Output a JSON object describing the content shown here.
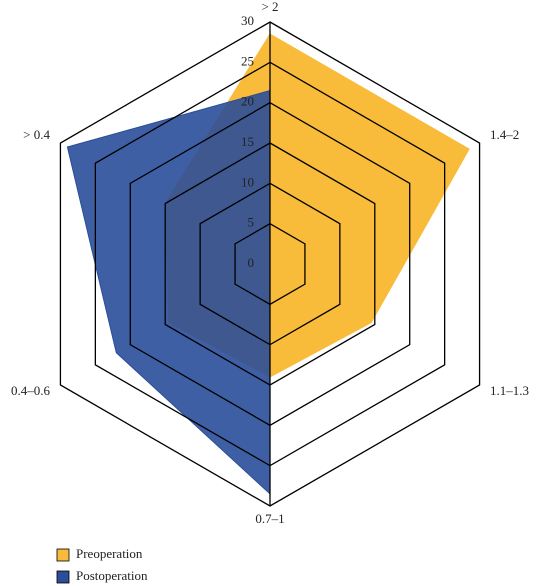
{
  "chart_data": {
    "type": "radar",
    "categories": [
      "> 2",
      "1.4–2",
      "1.1–1.3",
      "0.7–1",
      "0.4–0.6",
      "> 0.4"
    ],
    "series": [
      {
        "name": "Preoperation",
        "color": "#f9bb3a",
        "values": [
          28.5,
          28.5,
          14.5,
          14,
          14.5,
          15
        ]
      },
      {
        "name": "Postoperation",
        "color": "#2a4e9a",
        "values": [
          21.5,
          0,
          0,
          28.5,
          22,
          29
        ]
      }
    ],
    "rlim": [
      0,
      30
    ],
    "rticks": [
      0,
      5,
      10,
      15,
      20,
      25,
      30
    ],
    "grid": true
  }
}
